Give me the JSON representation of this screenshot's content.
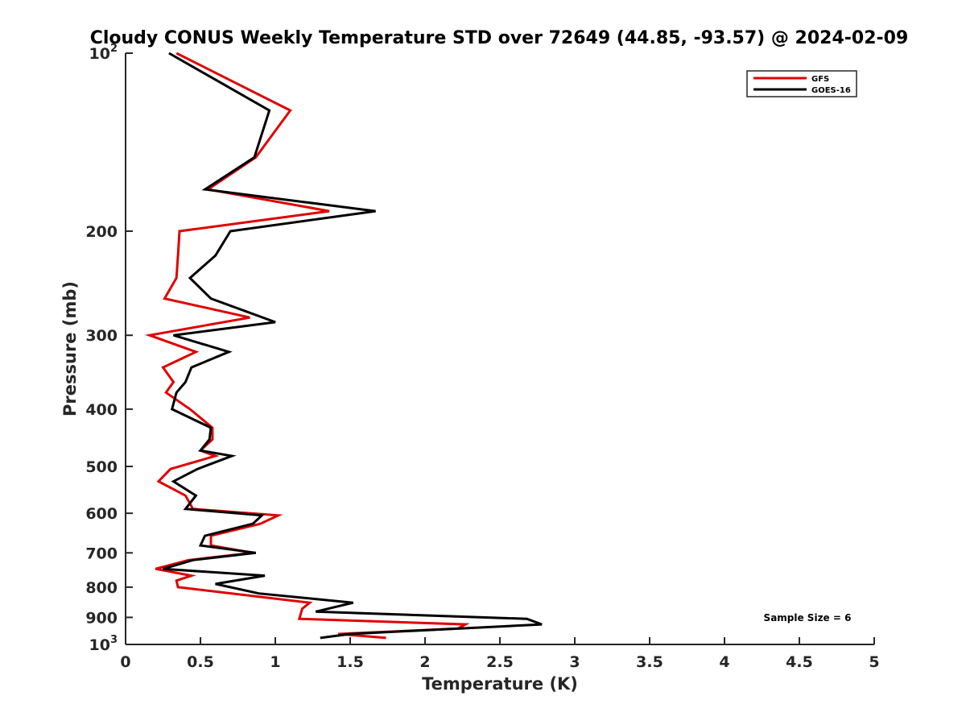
{
  "chart_data": {
    "type": "line",
    "title": "Cloudy CONUS Weekly Temperature STD over 72649 (44.85, -93.57) @ 2024-02-09",
    "xlabel": "Temperature (K)",
    "ylabel": "Pressure (mb)",
    "xlim": [
      0,
      5
    ],
    "ylim": [
      100,
      1000
    ],
    "y_scale": "log",
    "y_reversed": true,
    "x_ticks": [
      0,
      0.5,
      1,
      1.5,
      2,
      2.5,
      3,
      3.5,
      4,
      4.5,
      5
    ],
    "x_tick_labels": [
      "0",
      "0.5",
      "1",
      "1.5",
      "2",
      "2.5",
      "3",
      "3.5",
      "4",
      "4.5",
      "5"
    ],
    "y_ticks": [
      {
        "value": 100,
        "base": "10",
        "exp": "2"
      },
      {
        "value": 200,
        "label": "200"
      },
      {
        "value": 300,
        "label": "300"
      },
      {
        "value": 400,
        "label": "400"
      },
      {
        "value": 500,
        "label": "500"
      },
      {
        "value": 600,
        "label": "600"
      },
      {
        "value": 700,
        "label": "700"
      },
      {
        "value": 800,
        "label": "800"
      },
      {
        "value": 900,
        "label": "900"
      },
      {
        "value": 1000,
        "base": "10",
        "exp": "3"
      }
    ],
    "legend_position": "top-right",
    "grid": false,
    "annotation": "Sample Size = 6",
    "series": [
      {
        "name": "GFS",
        "color": "#e00000",
        "points": [
          [
            0.34,
            100
          ],
          [
            1.1,
            125
          ],
          [
            0.87,
            150
          ],
          [
            0.55,
            170
          ],
          [
            1.36,
            185
          ],
          [
            0.36,
            200
          ],
          [
            0.35,
            220
          ],
          [
            0.34,
            240
          ],
          [
            0.26,
            260
          ],
          [
            0.83,
            280
          ],
          [
            0.16,
            300
          ],
          [
            0.47,
            320
          ],
          [
            0.25,
            340
          ],
          [
            0.32,
            360
          ],
          [
            0.27,
            375
          ],
          [
            0.43,
            400
          ],
          [
            0.58,
            430
          ],
          [
            0.58,
            450
          ],
          [
            0.5,
            470
          ],
          [
            0.6,
            480
          ],
          [
            0.3,
            505
          ],
          [
            0.22,
            530
          ],
          [
            0.4,
            560
          ],
          [
            0.45,
            590
          ],
          [
            1.02,
            605
          ],
          [
            0.9,
            625
          ],
          [
            0.57,
            655
          ],
          [
            0.57,
            680
          ],
          [
            0.85,
            700
          ],
          [
            0.42,
            720
          ],
          [
            0.2,
            745
          ],
          [
            0.44,
            765
          ],
          [
            0.34,
            780
          ],
          [
            0.35,
            800
          ],
          [
            1.23,
            850
          ],
          [
            1.18,
            870
          ],
          [
            1.16,
            905
          ],
          [
            2.27,
            925
          ],
          [
            2.22,
            940
          ],
          [
            1.42,
            960
          ],
          [
            1.74,
            975
          ]
        ]
      },
      {
        "name": "GOES-16",
        "color": "#000000",
        "points": [
          [
            0.29,
            100
          ],
          [
            0.96,
            125
          ],
          [
            0.86,
            150
          ],
          [
            0.53,
            170
          ],
          [
            1.67,
            185
          ],
          [
            0.7,
            200
          ],
          [
            0.6,
            220
          ],
          [
            0.43,
            240
          ],
          [
            0.57,
            260
          ],
          [
            1.0,
            285
          ],
          [
            0.32,
            300
          ],
          [
            0.69,
            320
          ],
          [
            0.44,
            340
          ],
          [
            0.4,
            360
          ],
          [
            0.34,
            375
          ],
          [
            0.31,
            400
          ],
          [
            0.57,
            430
          ],
          [
            0.56,
            450
          ],
          [
            0.5,
            470
          ],
          [
            0.71,
            480
          ],
          [
            0.48,
            505
          ],
          [
            0.32,
            530
          ],
          [
            0.47,
            560
          ],
          [
            0.4,
            590
          ],
          [
            0.91,
            605
          ],
          [
            0.85,
            625
          ],
          [
            0.53,
            655
          ],
          [
            0.5,
            680
          ],
          [
            0.87,
            700
          ],
          [
            0.45,
            720
          ],
          [
            0.25,
            745
          ],
          [
            0.93,
            765
          ],
          [
            0.6,
            790
          ],
          [
            0.89,
            820
          ],
          [
            1.52,
            850
          ],
          [
            1.27,
            880
          ],
          [
            2.68,
            905
          ],
          [
            2.78,
            925
          ],
          [
            1.5,
            960
          ],
          [
            1.3,
            975
          ]
        ]
      }
    ]
  }
}
